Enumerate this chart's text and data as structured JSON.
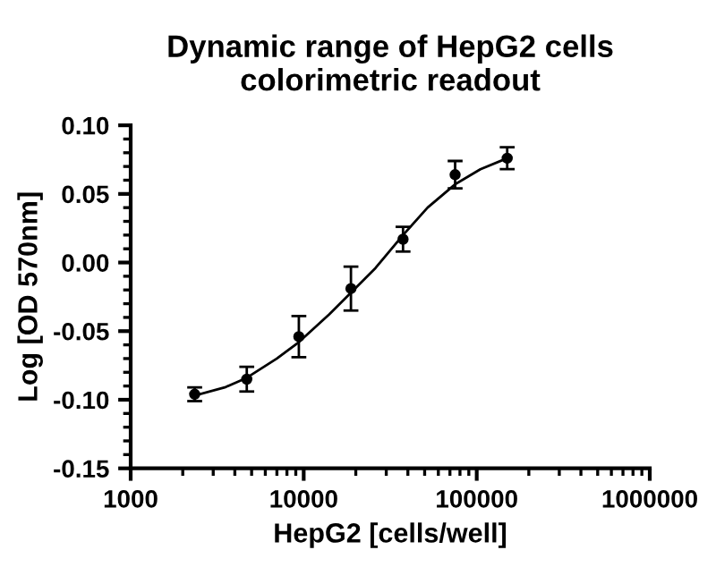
{
  "chart_data": {
    "type": "scatter",
    "title": "Dynamic range of HepG2 cells\ncolorimetric readout",
    "xlabel": "HepG2 [cells/well]",
    "ylabel": "Log [OD 570nm]",
    "log": "x",
    "xlim": [
      1000,
      1000000
    ],
    "xticks": [
      1000,
      10000,
      100000,
      1000000
    ],
    "ylim": [
      -0.15,
      0.1
    ],
    "yticks": [
      {
        "value": -0.15,
        "label": "-0.15"
      },
      {
        "value": -0.1,
        "label": "-0.10"
      },
      {
        "value": -0.05,
        "label": "-0.05"
      },
      {
        "value": 0,
        "label": "0.00"
      },
      {
        "value": 0.05,
        "label": "0.05"
      },
      {
        "value": 0.1,
        "label": "0.10"
      }
    ],
    "grid": false,
    "legend": false,
    "series": [
      {
        "marker": "circle",
        "color": "#000000",
        "x": [
          2344,
          4688,
          9375,
          18750,
          37500,
          75000,
          150000
        ],
        "values": [
          -0.096,
          -0.085,
          -0.054,
          -0.019,
          0.017,
          0.064,
          0.076
        ],
        "errors": [
          0.005,
          0.009,
          0.015,
          0.016,
          0.009,
          0.01,
          0.008
        ]
      },
      {
        "type": "line",
        "color": "#000000",
        "x": [
          2344,
          3500,
          4688,
          7000,
          9375,
          14000,
          18750,
          26000,
          37500,
          52000,
          75000,
          105000,
          150000
        ],
        "values": [
          -0.097,
          -0.091,
          -0.084,
          -0.07,
          -0.058,
          -0.038,
          -0.022,
          -0.004,
          0.02,
          0.04,
          0.057,
          0.068,
          0.076
        ]
      }
    ]
  }
}
